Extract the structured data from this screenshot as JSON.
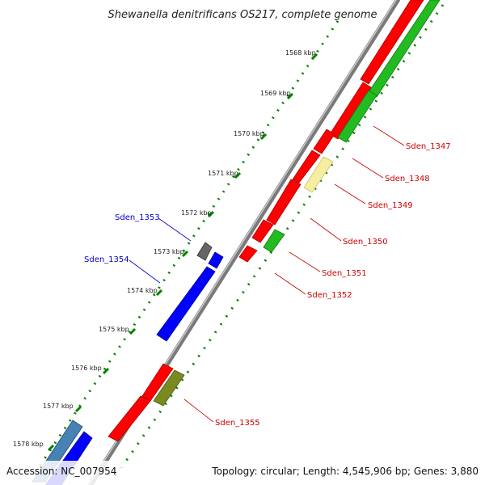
{
  "title": "Shewanella denitrificans OS217, complete genome",
  "footer": {
    "accession": "Accession: NC_007954",
    "summary": "Topology: circular; Length: 4,545,906 bp; Genes: 3,880"
  },
  "ticks": [
    "1568 kbp",
    "1569 kbp",
    "1570 kbp",
    "1571 kbp",
    "1572 kbp",
    "1573 kbp",
    "1574 kbp",
    "1575 kbp",
    "1576 kbp",
    "1577 kbp",
    "1578 kbp"
  ],
  "gene_labels": {
    "Sden_1347": "Sden_1347",
    "Sden_1348": "Sden_1348",
    "Sden_1349": "Sden_1349",
    "Sden_1350": "Sden_1350",
    "Sden_1351": "Sden_1351",
    "Sden_1352": "Sden_1352",
    "Sden_1353": "Sden_1353",
    "Sden_1354": "Sden_1354",
    "Sden_1355": "Sden_1355"
  },
  "colors": {
    "forward_cds": "#ff0000",
    "reverse_green": "#22bb22",
    "blue_cds": "#0000ff",
    "pale_yellow": "#f5eea0",
    "olive": "#7a8a20",
    "gray": "#666666",
    "steel_blue": "#4682b4",
    "label_red": "#cc0000",
    "label_blue": "#0000cc",
    "tick_green": "#008000"
  }
}
